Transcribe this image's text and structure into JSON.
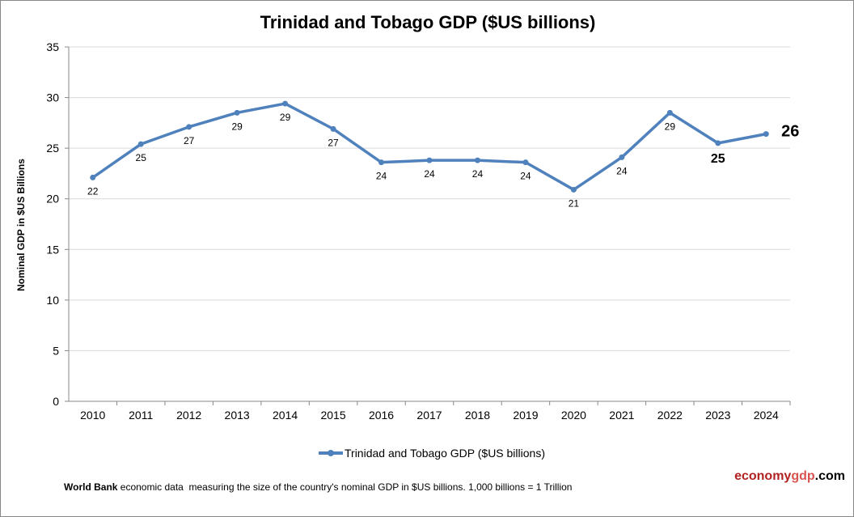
{
  "chart_data": {
    "type": "line",
    "title": "Trinidad and Tobago GDP ($US billions)",
    "ylabel": "Nominal GDP in $US Billions",
    "xlabel": "",
    "categories": [
      "2010",
      "2011",
      "2012",
      "2013",
      "2014",
      "2015",
      "2016",
      "2017",
      "2018",
      "2019",
      "2020",
      "2021",
      "2022",
      "2023",
      "2024"
    ],
    "series": [
      {
        "name": "Trinidad and Tobago GDP ($US billions)",
        "values": [
          22.1,
          25.4,
          27.1,
          28.5,
          29.4,
          26.9,
          23.6,
          23.8,
          23.8,
          23.6,
          20.9,
          24.1,
          28.5,
          25.5,
          26.4
        ],
        "data_labels": [
          "22",
          "25",
          "27",
          "29",
          "29",
          "27",
          "24",
          "24",
          "24",
          "24",
          "21",
          "24",
          "29",
          "25",
          "26"
        ],
        "color": "#4f81bd"
      }
    ],
    "ylim": [
      0,
      35
    ],
    "yticks": [
      0,
      5,
      10,
      15,
      20,
      25,
      30,
      35
    ],
    "grid": true,
    "legend_position": "bottom"
  },
  "footer": {
    "source_bold": "World Bank",
    "text": " economic data  measuring the size of the country's nominal GDP in $US billions. 1,000 billions = 1 Trillion"
  },
  "brand": {
    "part1": "economy",
    "part2": "gdp",
    "part3": ".com",
    "color1": "#b22222",
    "color2": "#d9534f"
  }
}
